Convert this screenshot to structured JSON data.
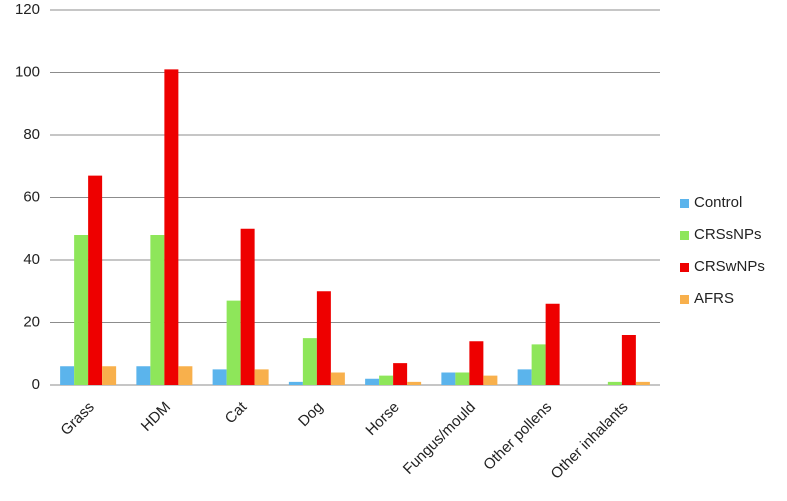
{
  "chart_data": {
    "type": "bar",
    "categories": [
      "Grass",
      "HDM",
      "Cat",
      "Dog",
      "Horse",
      "Fungus/mould",
      "Other pollens",
      "Other inhalants"
    ],
    "series": [
      {
        "name": "Control",
        "color": "#5bb4ec",
        "values": [
          6,
          6,
          5,
          1,
          2,
          4,
          5,
          0
        ]
      },
      {
        "name": "CRSsNPs",
        "color": "#8ee65a",
        "values": [
          48,
          48,
          27,
          15,
          3,
          4,
          13,
          1
        ]
      },
      {
        "name": "CRSwNPs",
        "color": "#ee0000",
        "values": [
          67,
          101,
          50,
          30,
          7,
          14,
          26,
          16
        ]
      },
      {
        "name": "AFRS",
        "color": "#f8b04c",
        "values": [
          6,
          6,
          5,
          4,
          1,
          3,
          0,
          1
        ]
      }
    ],
    "ylim": [
      0,
      120
    ],
    "yticks": [
      0,
      20,
      40,
      60,
      80,
      100,
      120
    ],
    "grid": true,
    "legend": "right"
  }
}
